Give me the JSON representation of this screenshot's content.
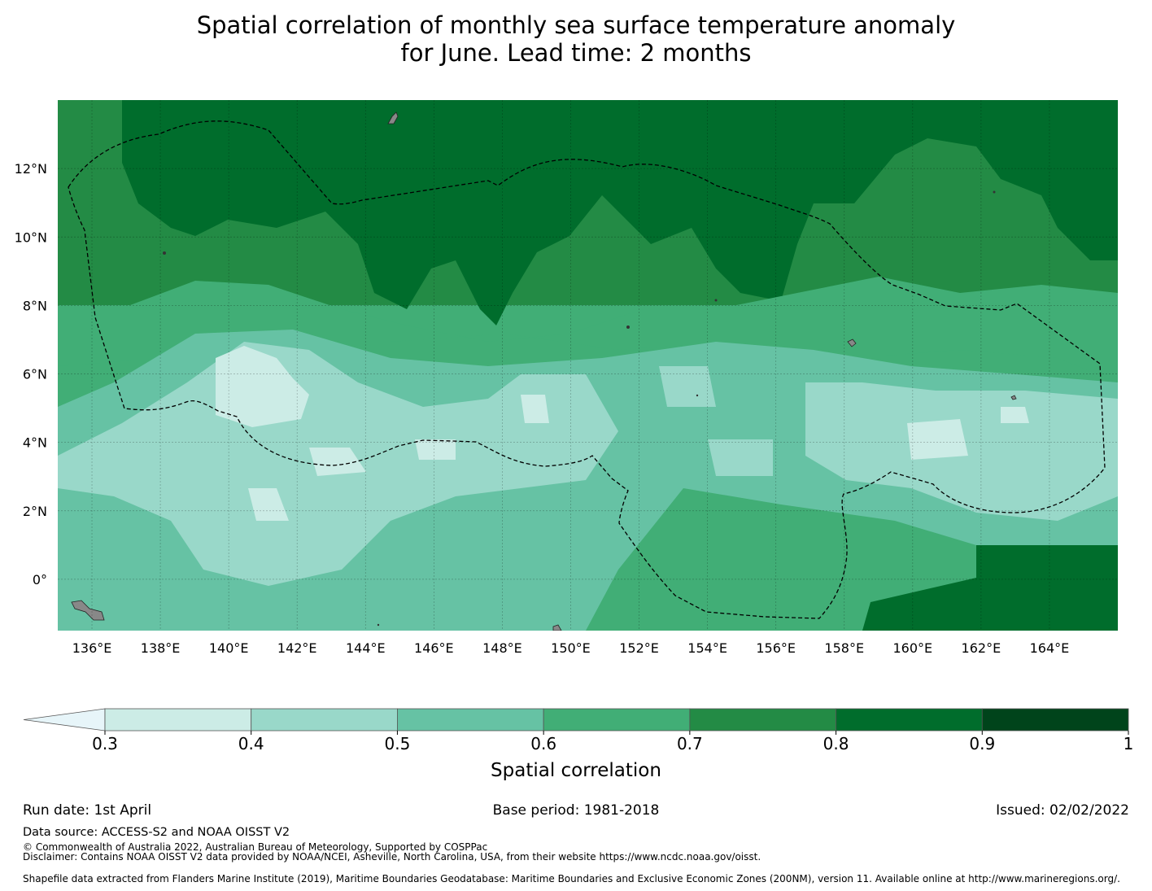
{
  "title": {
    "line1": "Spatial correlation of monthly sea surface temperature anomaly",
    "line2": "for June. Lead time: 2 months"
  },
  "map": {
    "lon_range": [
      135,
      166
    ],
    "lat_range": [
      -1.5,
      14
    ],
    "x_ticks": [
      "136°E",
      "138°E",
      "140°E",
      "142°E",
      "144°E",
      "146°E",
      "148°E",
      "150°E",
      "152°E",
      "154°E",
      "156°E",
      "158°E",
      "160°E",
      "162°E",
      "164°E"
    ],
    "y_ticks": [
      "12°N",
      "10°N",
      "8°N",
      "6°N",
      "4°N",
      "2°N",
      "0°"
    ],
    "gridlines": true,
    "land_color": "#888888",
    "boundary_style": "dashed black"
  },
  "colorbar": {
    "title": "Spatial correlation",
    "levels": [
      "0.3",
      "0.4",
      "0.5",
      "0.6",
      "0.7",
      "0.8",
      "0.9",
      "1"
    ],
    "colors": [
      "#e7f5f9",
      "#ccece6",
      "#99d8c9",
      "#66c2a4",
      "#41ae76",
      "#238b45",
      "#006d2c",
      "#00441b"
    ],
    "extend": "min"
  },
  "footer": {
    "run_date": "Run date: 1st April",
    "base_period": "Base period: 1981-2018",
    "issued": "Issued: 02/02/2022",
    "data_source": "Data source: ACCESS-S2 and NOAA OISST V2",
    "copyright": "© Commonwealth of Australia 2022, Australian Bureau of Meteorology, Supported by COSPPac",
    "disclaimer": "Disclaimer: Contains NOAA OISST V2 data provided by NOAA/NCEI, Asheville, North Carolina, USA, from their website https://www.ncdc.noaa.gov/oisst.",
    "shapefile": "Shapefile data extracted from Flanders Marine Institute (2019), Maritime Boundaries Geodatabase: Maritime Boundaries and Exclusive Economic Zones (200NM), version 11. Available online at http://www.marineregions.org/."
  }
}
